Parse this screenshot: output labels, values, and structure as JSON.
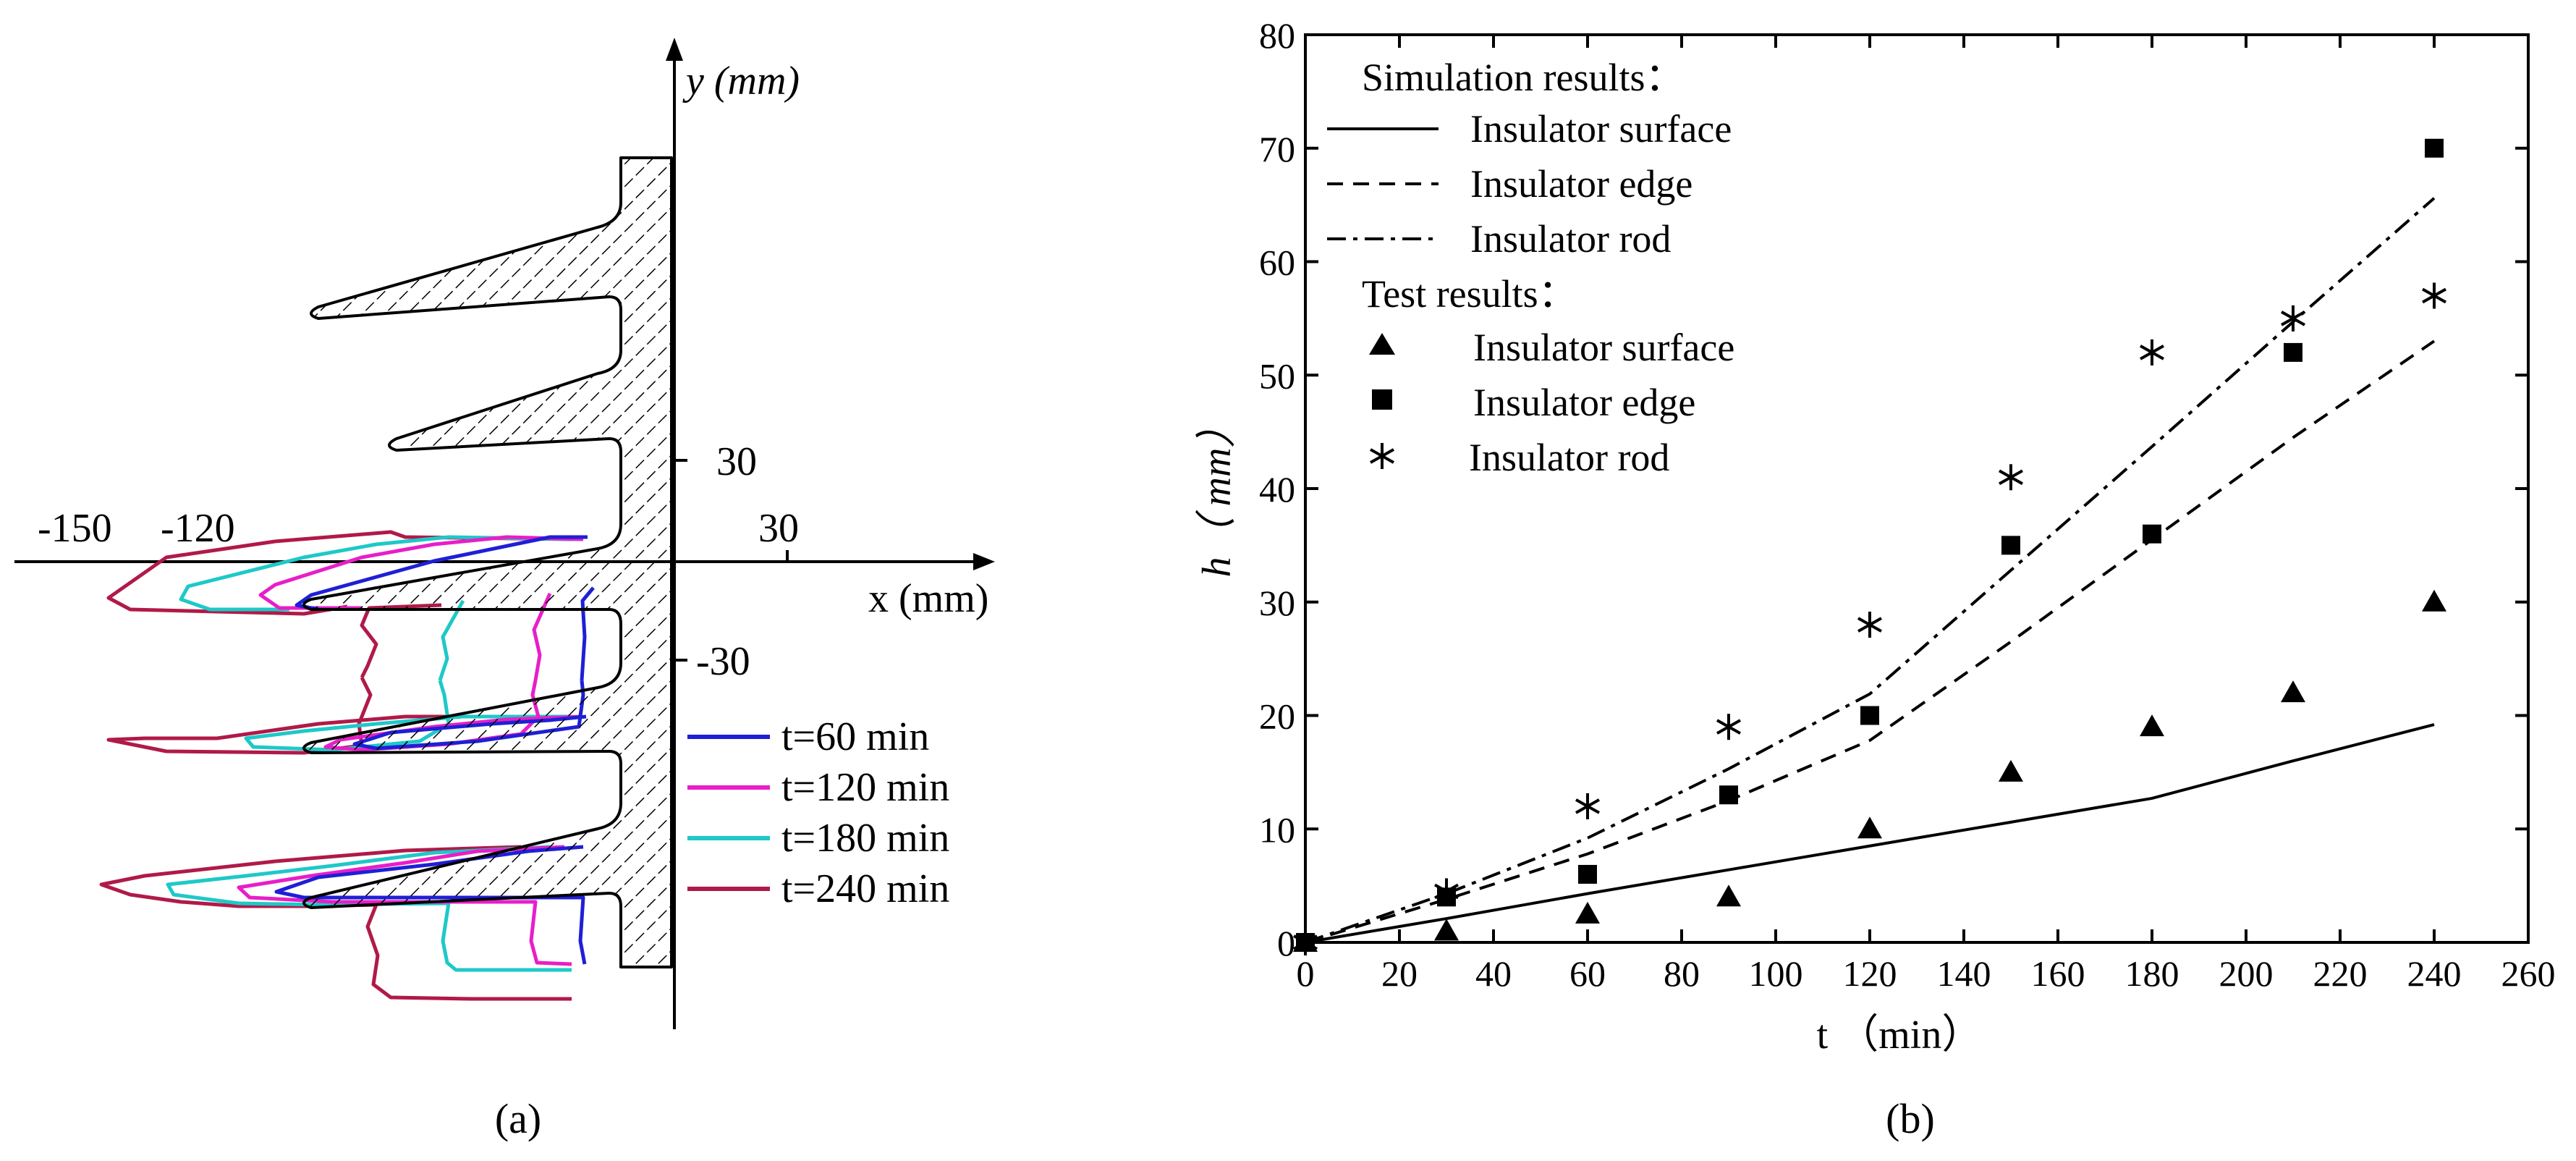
{
  "panel_a": {
    "label": "(a)",
    "x_axis_label": "x (mm)",
    "y_axis_label": "y (mm)",
    "x_tick_labels": [
      "-150",
      "-120",
      "30"
    ],
    "y_tick_labels": [
      "30",
      "-30"
    ],
    "legend": [
      {
        "name": "t=60 min",
        "color": "#1f1fd6"
      },
      {
        "name": "t=120 min",
        "color": "#e81ec8"
      },
      {
        "name": "t=180 min",
        "color": "#1ec8c8"
      },
      {
        "name": "t=240 min",
        "color": "#b01a48"
      }
    ]
  },
  "panel_b": {
    "label": "(b)",
    "legend_sim_heading": "Simulation results：",
    "legend_test_heading": "Test results：",
    "legend_sim": [
      "Insulator surface",
      "Insulator edge",
      "Insulator rod"
    ],
    "legend_test": [
      "Insulator surface",
      "Insulator edge",
      "Insulator rod"
    ]
  },
  "chart_data": [
    {
      "type": "line",
      "title": "",
      "xlabel": "x (mm)",
      "ylabel": "y (mm)",
      "description_series": [
        "t=60 min",
        "t=120 min",
        "t=180 min",
        "t=240 min"
      ],
      "series": [
        {
          "name": "t=60 min",
          "color": "#1f1fd6",
          "max_extent_x_mm": -100
        },
        {
          "name": "t=120 min",
          "color": "#e81ec8",
          "max_extent_x_mm": -115
        },
        {
          "name": "t=180 min",
          "color": "#1ec8c8",
          "max_extent_x_mm": -130
        },
        {
          "name": "t=240 min",
          "color": "#b01a48",
          "max_extent_x_mm": -150
        }
      ]
    },
    {
      "type": "scatter",
      "title": "",
      "xlabel": "t （min）",
      "ylabel": "h（ mm）",
      "xlim": [
        0,
        260
      ],
      "ylim": [
        0,
        80
      ],
      "x_ticks": [
        "0",
        "20",
        "40",
        "60",
        "80",
        "100",
        "120",
        "140",
        "160",
        "180",
        "200",
        "220",
        "240",
        "260"
      ],
      "y_ticks": [
        "0",
        "10",
        "20",
        "30",
        "40",
        "50",
        "60",
        "70",
        "80"
      ],
      "x": [
        0,
        30,
        60,
        90,
        120,
        150,
        180,
        210,
        240
      ],
      "series": [
        {
          "name": "Insulator surface (simulation)",
          "kind": "line",
          "style": "solid",
          "x": [
            0,
            30,
            60,
            90,
            120,
            150,
            180,
            210,
            240
          ],
          "values": [
            0,
            2.1,
            4.3,
            6.4,
            8.5,
            10.6,
            12.7,
            16,
            19.2
          ]
        },
        {
          "name": "Insulator edge (simulation)",
          "kind": "line",
          "style": "dashed",
          "x": [
            0,
            30,
            60,
            90,
            120,
            150,
            180,
            210,
            240
          ],
          "values": [
            0,
            3.8,
            7.8,
            12.5,
            17.8,
            26.5,
            35.5,
            44.5,
            53
          ]
        },
        {
          "name": "Insulator rod (simulation)",
          "kind": "line",
          "style": "dashdot",
          "x": [
            0,
            30,
            60,
            90,
            120,
            150,
            180,
            210,
            240
          ],
          "values": [
            0,
            4.3,
            9.2,
            15.3,
            21.9,
            32.8,
            43.7,
            54.7,
            65.6
          ]
        },
        {
          "name": "Insulator surface (test)",
          "kind": "marker",
          "marker": "triangle",
          "x": [
            0,
            30,
            60,
            90,
            120,
            150,
            180,
            210,
            240
          ],
          "values": [
            0,
            1,
            2.5,
            4,
            10,
            15,
            19,
            22,
            30
          ]
        },
        {
          "name": "Insulator edge (test)",
          "kind": "marker",
          "marker": "square",
          "x": [
            0,
            30,
            60,
            90,
            120,
            150,
            180,
            210,
            240
          ],
          "values": [
            0,
            4,
            6,
            13,
            20,
            35,
            36,
            52,
            70
          ]
        },
        {
          "name": "Insulator rod (test)",
          "kind": "marker",
          "marker": "asterisk",
          "x": [
            0,
            30,
            60,
            90,
            120,
            150,
            180,
            210,
            240
          ],
          "values": [
            0,
            4.5,
            12,
            19,
            28,
            41,
            52,
            55,
            57
          ]
        }
      ]
    }
  ]
}
